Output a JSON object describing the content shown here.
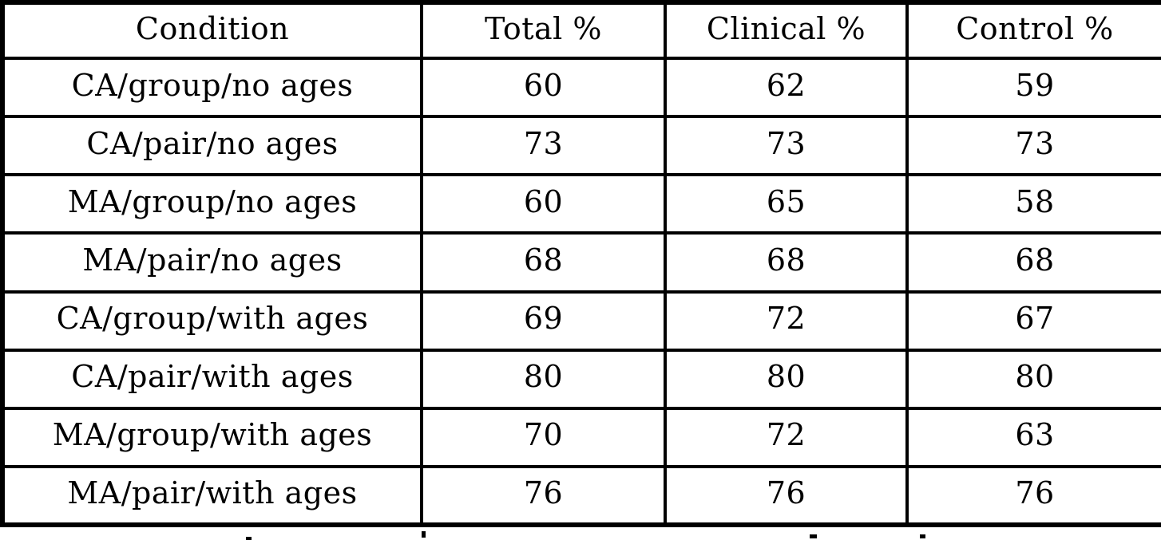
{
  "table": {
    "headers": [
      "Condition",
      "Total %",
      "Clinical %",
      "Control %"
    ],
    "rows": [
      [
        "CA/group/no ages",
        "60",
        "62",
        "59"
      ],
      [
        "CA/pair/no ages",
        "73",
        "73",
        "73"
      ],
      [
        "MA/group/no ages",
        "60",
        "65",
        "58"
      ],
      [
        "MA/pair/no ages",
        "68",
        "68",
        "68"
      ],
      [
        "CA/group/with ages",
        "69",
        "72",
        "67"
      ],
      [
        "CA/pair/with ages",
        "80",
        "80",
        "80"
      ],
      [
        "MA/group/with ages",
        "70",
        "72",
        "63"
      ],
      [
        "MA/pair/with ages",
        "76",
        "76",
        "76"
      ]
    ]
  },
  "chart_data": {
    "type": "table",
    "columns": [
      "Condition",
      "Total %",
      "Clinical %",
      "Control %"
    ],
    "rows": [
      [
        "CA/group/no ages",
        60,
        62,
        59
      ],
      [
        "CA/pair/no ages",
        73,
        73,
        73
      ],
      [
        "MA/group/no ages",
        60,
        65,
        58
      ],
      [
        "MA/pair/no ages",
        68,
        68,
        68
      ],
      [
        "CA/group/with ages",
        69,
        72,
        67
      ],
      [
        "CA/pair/with ages",
        80,
        80,
        80
      ],
      [
        "MA/group/with ages",
        70,
        72,
        63
      ],
      [
        "MA/pair/with ages",
        76,
        76,
        76
      ]
    ]
  },
  "colors": {
    "ink": "#000000",
    "paper": "#ffffff"
  }
}
